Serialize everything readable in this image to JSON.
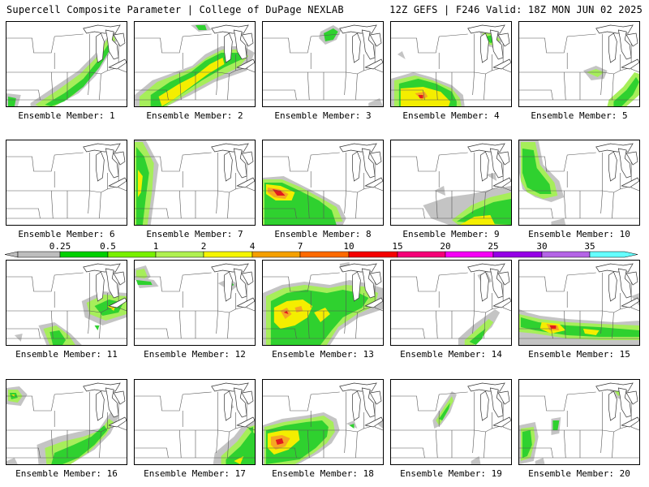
{
  "header": {
    "title_left": "Supercell Composite Parameter | College of DuPage NEXLAB",
    "title_right": "12Z GEFS | F246 Valid: 18Z MON JUN 02 2025"
  },
  "member_label_prefix": "Ensemble Member: ",
  "members": [
    1,
    2,
    3,
    4,
    5,
    6,
    7,
    8,
    9,
    10,
    11,
    12,
    13,
    14,
    15,
    16,
    17,
    18,
    19,
    20
  ],
  "legend": {
    "levels": [
      "0.25",
      "0.5",
      "1",
      "2",
      "4",
      "7",
      "10",
      "15",
      "20",
      "25",
      "30",
      "35"
    ],
    "colors": [
      "#bdbdbd",
      "#00d000",
      "#78f000",
      "#b0f050",
      "#f5f500",
      "#f5a000",
      "#ff6a00",
      "#f50000",
      "#f50078",
      "#f500f5",
      "#9600e6",
      "#b464e6",
      "#64ffff"
    ]
  },
  "colors": {
    "light_green": "#a6ee5a",
    "green": "#2fd12f",
    "yellow": "#f4ee00",
    "orange": "#f6a623",
    "red": "#e31a1c",
    "gray": "#c4c4c4"
  }
}
